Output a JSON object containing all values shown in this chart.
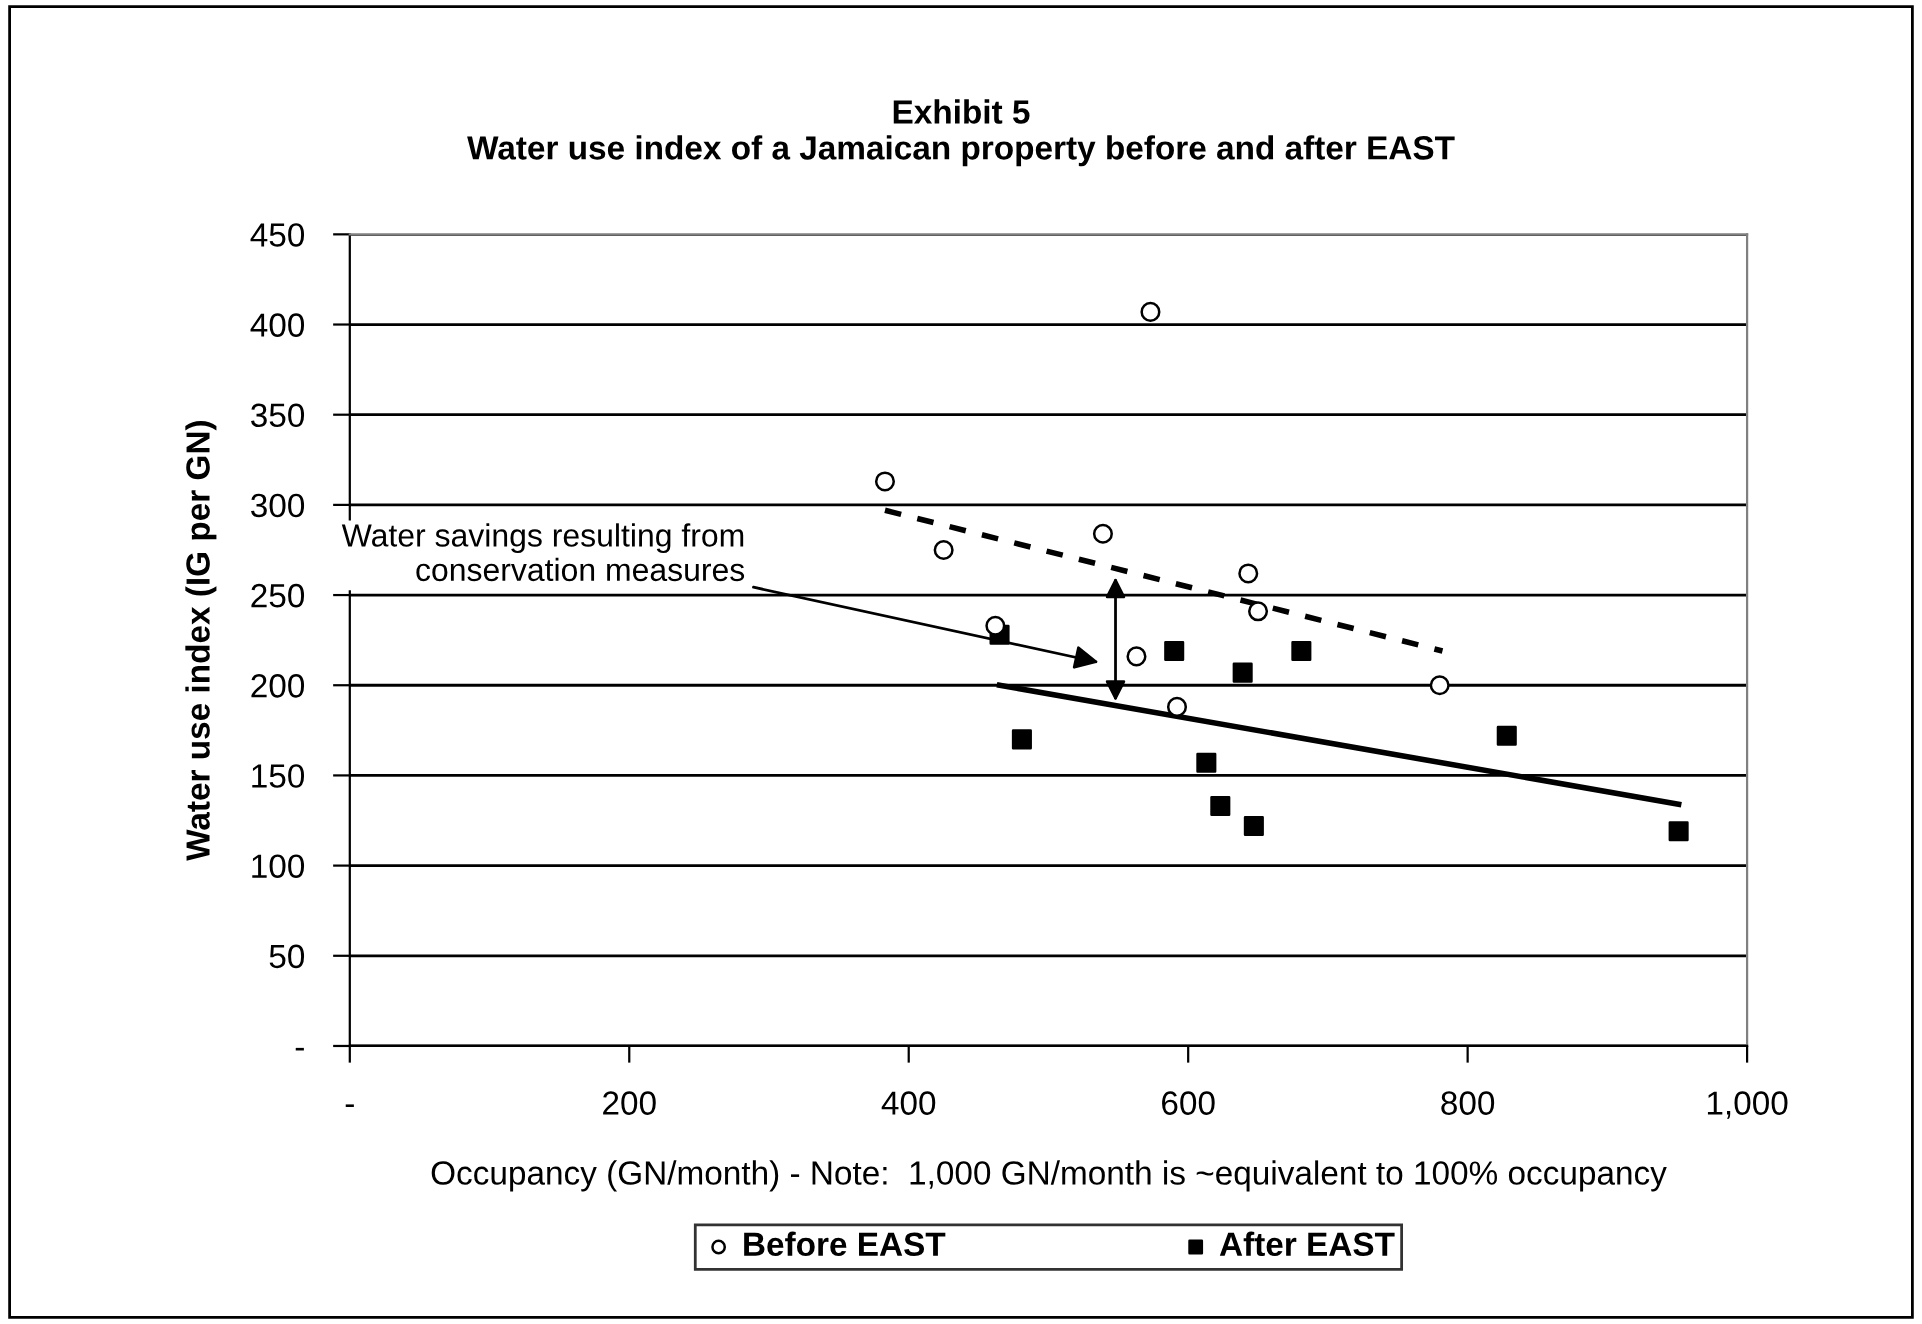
{
  "chart_data": {
    "type": "scatter",
    "title": "Exhibit 5\nWater use index of a Jamaican property before and after EAST",
    "xlabel": "Occupancy (GN/month) - Note:  1,000 GN/month is ~equivalent to 100% occupancy",
    "ylabel": "Water use index (IG per GN)",
    "series": [
      {
        "name": "Before EAST",
        "marker": "circle",
        "color": "#ffffff",
        "x": [
          383,
          425,
          539,
          573,
          643,
          650,
          462,
          563,
          592,
          780
        ],
        "values": [
          313,
          275,
          284,
          407,
          262,
          241,
          233,
          216,
          188,
          200
        ]
      },
      {
        "name": "After EAST",
        "marker": "square",
        "color": "#000000",
        "x": [
          465,
          481,
          590,
          639,
          681,
          613,
          623,
          647,
          828,
          951
        ],
        "values": [
          228,
          170,
          219,
          207,
          219,
          157,
          133,
          122,
          172,
          119
        ]
      },
      {
        "type": "line",
        "line_style": "dashed",
        "color": "#000000",
        "x": [
          383,
          782
        ],
        "values": [
          297,
          219
        ]
      },
      {
        "type": "line",
        "line_style": "solid",
        "color": "#000000",
        "x": [
          465,
          951
        ],
        "values": [
          200,
          134
        ]
      }
    ],
    "annotations": [
      "Water savings resulting from\nconservation measures"
    ],
    "xlim": [
      0,
      1000
    ],
    "xticks": [
      {
        "value": 0,
        "label": "-"
      },
      200,
      400,
      600,
      800,
      {
        "value": 1000,
        "label": "1,000"
      }
    ],
    "ylim": [
      0,
      450
    ],
    "yticks": [
      {
        "value": 0,
        "label": "-"
      },
      50,
      100,
      150,
      200,
      250,
      300,
      350,
      400,
      450
    ],
    "grid": "y",
    "legend": "bottom"
  }
}
